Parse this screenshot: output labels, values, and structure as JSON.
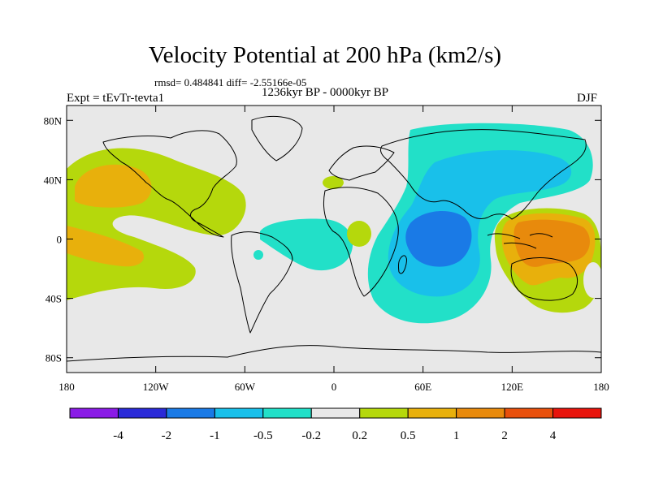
{
  "title": "Velocity Potential at 200 hPa (km2/s)",
  "stats": "rmsd= 0.484841 diff= -2.55166e-05",
  "period": "1236kyr BP - 0000kyr BP",
  "experiment": "Expt = tEvTr-tevta1",
  "season": "DJF",
  "lat_labels": [
    "80N",
    "40N",
    "0",
    "40S",
    "80S"
  ],
  "lat_values": [
    80,
    40,
    0,
    -40,
    -80
  ],
  "lon_labels": [
    "180",
    "120W",
    "60W",
    "0",
    "60E",
    "120E",
    "180"
  ],
  "lon_values": [
    -180,
    -120,
    -60,
    0,
    60,
    120,
    180
  ],
  "colorbar": {
    "colors": [
      "#8a1be6",
      "#2a2ad8",
      "#1a7ae6",
      "#19c0ea",
      "#22e0c8",
      "#e8e8e8",
      "#b5d80c",
      "#e8b00c",
      "#e88a0c",
      "#e8500c",
      "#e8140c"
    ],
    "labels": [
      "-4",
      "-2",
      "-1",
      "-0.5",
      "-0.2",
      "0.2",
      "0.5",
      "1",
      "2",
      "4"
    ]
  },
  "contour_levels": [
    -4,
    -2,
    -1,
    -0.5,
    -0.2,
    0.2,
    0.5,
    1,
    2,
    4
  ]
}
